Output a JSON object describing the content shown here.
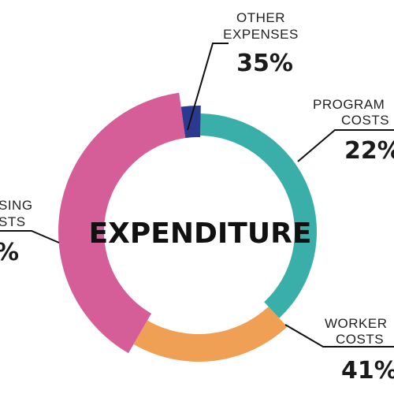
{
  "chart_data": {
    "type": "pie",
    "title": "EXPENDITURE",
    "slices": [
      {
        "key": "program",
        "label_lines": [
          "PROGRAM",
          "COSTS"
        ],
        "value_text": "22%",
        "color": "#3aafa9"
      },
      {
        "key": "worker",
        "label_lines": [
          "WORKER",
          "COSTS"
        ],
        "value_text": "41%",
        "color": "#f0a055"
      },
      {
        "key": "housing",
        "label_lines": [
          "SING",
          "STS"
        ],
        "value_text": "%",
        "color": "#d55e98"
      },
      {
        "key": "other",
        "label_lines": [
          "OTHER",
          "EXPENSES"
        ],
        "value_text": "35%",
        "color": "#2b3a8f"
      }
    ]
  }
}
